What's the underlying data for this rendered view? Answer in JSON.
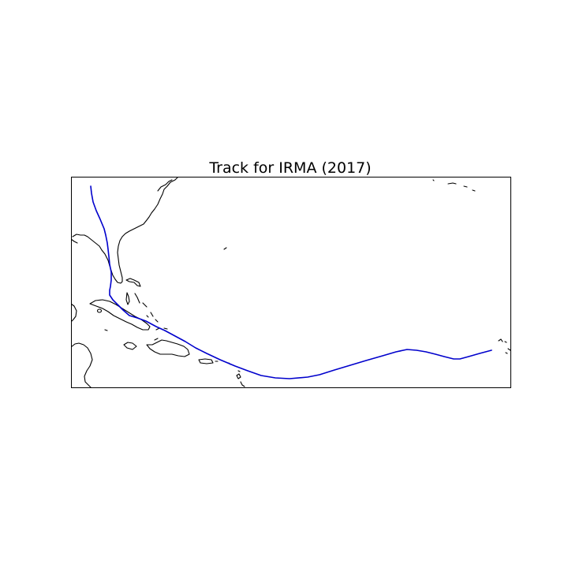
{
  "map": {
    "title": "Track for IRMA (2017)",
    "storm_name": "IRMA",
    "year": 2017,
    "track_color": "#0000cc",
    "coastline_color": "#000000"
  }
}
